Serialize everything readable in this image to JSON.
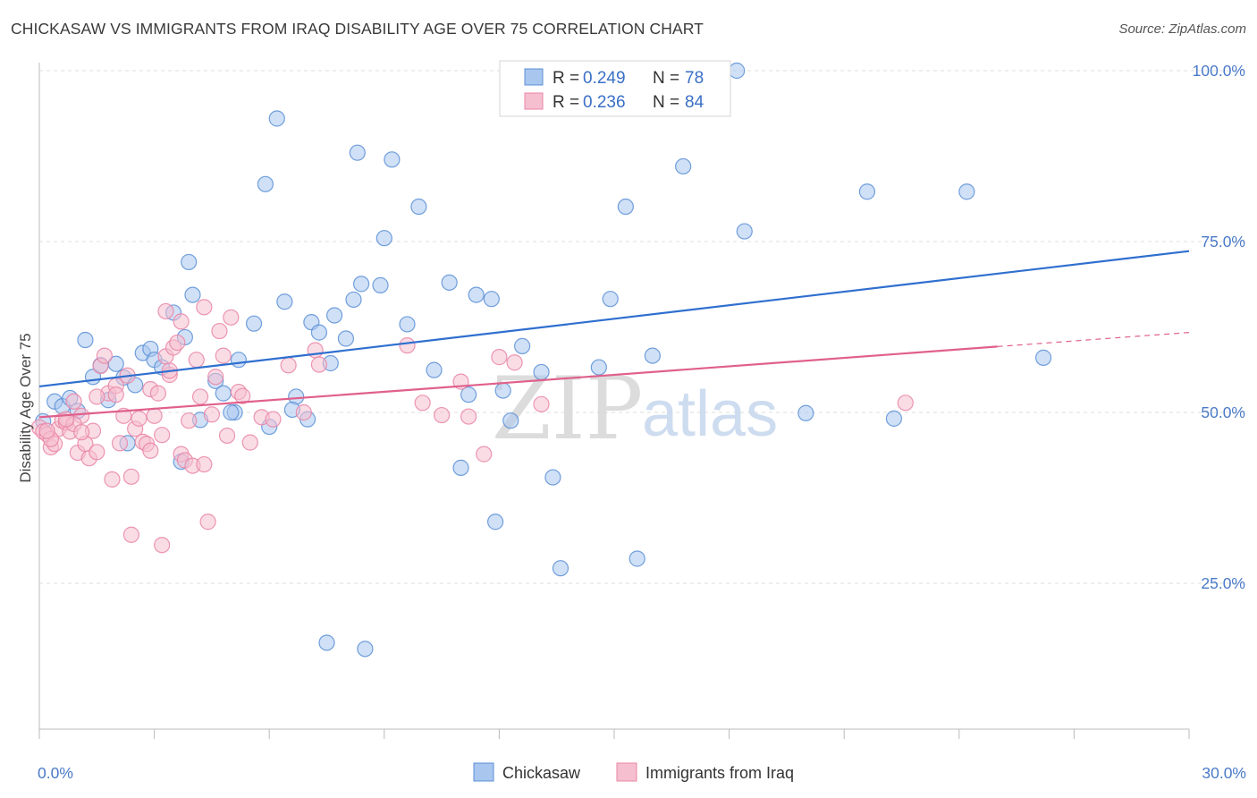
{
  "header": {
    "title": "CHICKASAW VS IMMIGRANTS FROM IRAQ DISABILITY AGE OVER 75 CORRELATION CHART",
    "source": "Source: ZipAtlas.com"
  },
  "watermark": {
    "zip": "ZIP",
    "atlas": "atlas"
  },
  "colors": {
    "blue_fill": "#a9c6ef",
    "blue_stroke": "#5b8fd6",
    "blue_line": "#2f6fcf",
    "pink_fill": "#f6bfd0",
    "pink_stroke": "#e985a6",
    "pink_line": "#e0608c",
    "grid": "#dddddd",
    "tick_label": "#4a7ac8"
  },
  "chart_data": {
    "type": "scatter",
    "title": "CHICKASAW VS IMMIGRANTS FROM IRAQ DISABILITY AGE OVER 75 CORRELATION CHART",
    "xlabel": "",
    "ylabel": "Disability Age Over 75",
    "xlim": [
      0,
      30
    ],
    "ylim": [
      0,
      100
    ],
    "x_ticks": [
      {
        "value": 0,
        "label": "0.0%"
      },
      {
        "value": 30,
        "label": "30.0%"
      }
    ],
    "y_ticks": [
      {
        "value": 25,
        "label": "25.0%"
      },
      {
        "value": 50,
        "label": "50.0%"
      },
      {
        "value": 75,
        "label": "75.0%"
      },
      {
        "value": 100,
        "label": "100.0%"
      }
    ],
    "grid": true,
    "legend_position": "top-center",
    "legend": [
      {
        "name": "Chickasaw",
        "r_label": "R =",
        "r": "0.249",
        "n_label": "N =",
        "n": "78"
      },
      {
        "name": "Immigrants from Iraq",
        "r_label": "R =",
        "r": "0.236",
        "n_label": "N =",
        "n": "84"
      }
    ],
    "series": [
      {
        "name": "Chickasaw",
        "color": "#5b8fd6",
        "trend": {
          "x0": 0,
          "y0": 53.8,
          "x1": 30,
          "y1": 73.6,
          "dashed_from": null
        },
        "points": [
          [
            0.1,
            48.7
          ],
          [
            0.4,
            51.6
          ],
          [
            0.6,
            50.9
          ],
          [
            0.8,
            52.1
          ],
          [
            1.0,
            50.2
          ],
          [
            1.2,
            60.6
          ],
          [
            1.4,
            55.2
          ],
          [
            1.6,
            56.9
          ],
          [
            1.8,
            51.8
          ],
          [
            2.0,
            57.1
          ],
          [
            2.2,
            55.1
          ],
          [
            2.5,
            54.0
          ],
          [
            2.7,
            58.7
          ],
          [
            2.9,
            59.3
          ],
          [
            3.0,
            57.7
          ],
          [
            3.2,
            56.6
          ],
          [
            3.5,
            64.6
          ],
          [
            3.8,
            61.0
          ],
          [
            3.9,
            72.0
          ],
          [
            4.0,
            67.2
          ],
          [
            4.2,
            48.9
          ],
          [
            4.6,
            54.6
          ],
          [
            4.8,
            52.8
          ],
          [
            5.1,
            50.0
          ],
          [
            5.2,
            57.7
          ],
          [
            5.6,
            63.0
          ],
          [
            5.9,
            83.4
          ],
          [
            6.0,
            47.9
          ],
          [
            6.2,
            93.0
          ],
          [
            6.4,
            66.2
          ],
          [
            6.7,
            52.3
          ],
          [
            7.0,
            49.0
          ],
          [
            7.1,
            63.2
          ],
          [
            7.3,
            61.7
          ],
          [
            7.6,
            57.2
          ],
          [
            7.7,
            64.2
          ],
          [
            8.0,
            60.8
          ],
          [
            8.2,
            66.5
          ],
          [
            8.3,
            88.0
          ],
          [
            8.4,
            68.8
          ],
          [
            8.9,
            68.6
          ],
          [
            9.0,
            75.5
          ],
          [
            9.2,
            87.0
          ],
          [
            9.6,
            62.9
          ],
          [
            9.9,
            80.1
          ],
          [
            10.3,
            56.2
          ],
          [
            10.7,
            69.0
          ],
          [
            11.0,
            41.9
          ],
          [
            11.2,
            52.6
          ],
          [
            11.4,
            67.2
          ],
          [
            11.8,
            66.6
          ],
          [
            11.9,
            34.0
          ],
          [
            12.1,
            53.2
          ],
          [
            12.3,
            48.8
          ],
          [
            12.6,
            59.7
          ],
          [
            13.1,
            55.9
          ],
          [
            13.4,
            40.5
          ],
          [
            13.6,
            27.2
          ],
          [
            14.6,
            56.6
          ],
          [
            14.9,
            66.6
          ],
          [
            15.3,
            80.1
          ],
          [
            15.6,
            28.6
          ],
          [
            16.0,
            58.3
          ],
          [
            16.5,
            100.0
          ],
          [
            16.8,
            86.0
          ],
          [
            18.2,
            100.0
          ],
          [
            18.4,
            76.5
          ],
          [
            20.0,
            49.9
          ],
          [
            21.6,
            82.3
          ],
          [
            22.3,
            49.1
          ],
          [
            24.2,
            82.3
          ],
          [
            26.2,
            58.0
          ],
          [
            5.0,
            50.0
          ],
          [
            3.7,
            42.8
          ],
          [
            7.5,
            16.3
          ],
          [
            8.5,
            15.4
          ],
          [
            2.3,
            45.5
          ],
          [
            6.6,
            50.4
          ]
        ]
      },
      {
        "name": "Immigrants from Iraq",
        "color": "#e985a6",
        "trend": {
          "x0": 0,
          "y0": 49.3,
          "x1": 30,
          "y1": 61.7,
          "dashed_from": 25.0
        },
        "points": [
          [
            0.0,
            47.8
          ],
          [
            0.1,
            47.2
          ],
          [
            0.2,
            46.8
          ],
          [
            0.3,
            44.9
          ],
          [
            0.4,
            45.4
          ],
          [
            0.5,
            47.6
          ],
          [
            0.6,
            48.8
          ],
          [
            0.7,
            48.5
          ],
          [
            0.8,
            47.2
          ],
          [
            0.9,
            51.6
          ],
          [
            1.0,
            44.1
          ],
          [
            1.1,
            49.5
          ],
          [
            1.2,
            45.4
          ],
          [
            1.3,
            43.3
          ],
          [
            1.4,
            47.3
          ],
          [
            1.5,
            44.2
          ],
          [
            1.6,
            56.8
          ],
          [
            1.7,
            58.3
          ],
          [
            1.8,
            52.8
          ],
          [
            1.9,
            40.2
          ],
          [
            2.0,
            53.9
          ],
          [
            2.1,
            45.5
          ],
          [
            2.2,
            49.5
          ],
          [
            2.3,
            55.4
          ],
          [
            2.4,
            40.6
          ],
          [
            2.5,
            47.6
          ],
          [
            2.6,
            49.1
          ],
          [
            2.7,
            45.7
          ],
          [
            2.8,
            45.4
          ],
          [
            2.9,
            53.4
          ],
          [
            3.0,
            49.5
          ],
          [
            3.1,
            52.8
          ],
          [
            3.2,
            46.7
          ],
          [
            3.3,
            58.2
          ],
          [
            3.4,
            55.5
          ],
          [
            3.5,
            59.5
          ],
          [
            3.6,
            60.2
          ],
          [
            3.7,
            43.9
          ],
          [
            3.8,
            43.0
          ],
          [
            3.9,
            48.8
          ],
          [
            4.0,
            42.2
          ],
          [
            4.1,
            57.7
          ],
          [
            4.2,
            52.3
          ],
          [
            4.3,
            65.4
          ],
          [
            4.4,
            34.0
          ],
          [
            4.5,
            49.7
          ],
          [
            4.6,
            55.2
          ],
          [
            4.7,
            61.9
          ],
          [
            4.8,
            58.3
          ],
          [
            4.9,
            46.6
          ],
          [
            5.0,
            63.9
          ],
          [
            5.2,
            53.0
          ],
          [
            5.5,
            45.6
          ],
          [
            5.8,
            49.3
          ],
          [
            6.1,
            49.0
          ],
          [
            6.5,
            56.9
          ],
          [
            6.9,
            50.0
          ],
          [
            7.2,
            59.1
          ],
          [
            7.3,
            57.0
          ],
          [
            9.6,
            59.8
          ],
          [
            10.0,
            51.4
          ],
          [
            10.5,
            49.6
          ],
          [
            11.0,
            54.5
          ],
          [
            11.2,
            49.4
          ],
          [
            11.6,
            43.9
          ],
          [
            12.0,
            58.1
          ],
          [
            12.4,
            57.3
          ],
          [
            13.1,
            51.2
          ],
          [
            22.6,
            51.4
          ],
          [
            3.3,
            64.8
          ],
          [
            2.4,
            32.1
          ],
          [
            3.2,
            30.6
          ],
          [
            4.3,
            42.4
          ],
          [
            0.9,
            48.3
          ],
          [
            1.1,
            47.1
          ],
          [
            3.7,
            63.3
          ],
          [
            2.9,
            44.4
          ],
          [
            1.5,
            52.3
          ],
          [
            0.3,
            46.1
          ],
          [
            0.7,
            49.0
          ],
          [
            5.3,
            52.4
          ],
          [
            2.0,
            52.6
          ],
          [
            3.4,
            56.1
          ],
          [
            0.2,
            47.3
          ]
        ]
      }
    ]
  }
}
